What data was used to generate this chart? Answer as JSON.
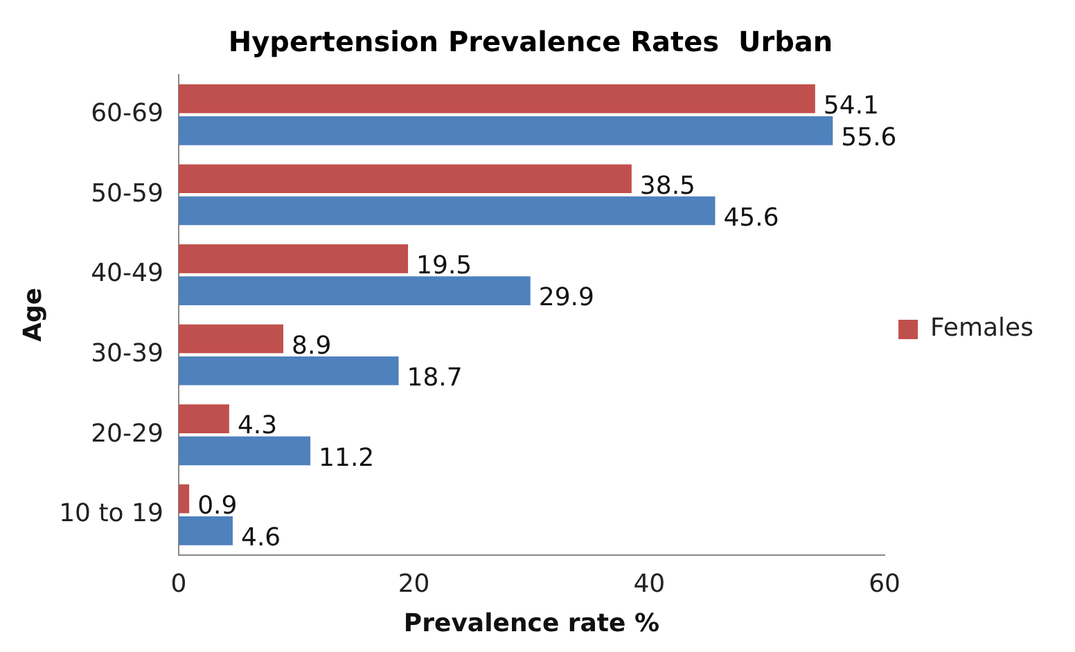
{
  "chart_data": {
    "type": "bar",
    "orientation": "horizontal",
    "title": "Hypertension Prevalence Rates  Urban",
    "xlabel": "Prevalence rate %",
    "ylabel": "Age",
    "categories": [
      "60-69",
      "50-59",
      "40-49",
      "30-39",
      "20-29",
      "10 to 19"
    ],
    "series": [
      {
        "name": "Females",
        "color": "#c0504d",
        "values": [
          54.1,
          38.5,
          19.5,
          8.9,
          4.3,
          0.9
        ]
      },
      {
        "color": "#4f81bd",
        "values": [
          55.6,
          45.6,
          29.9,
          18.7,
          11.2,
          4.6
        ]
      }
    ],
    "xlim": [
      0,
      60
    ],
    "xticks": [
      0,
      20,
      40,
      60
    ],
    "grid": false,
    "legend": "right",
    "data_labels": true
  }
}
